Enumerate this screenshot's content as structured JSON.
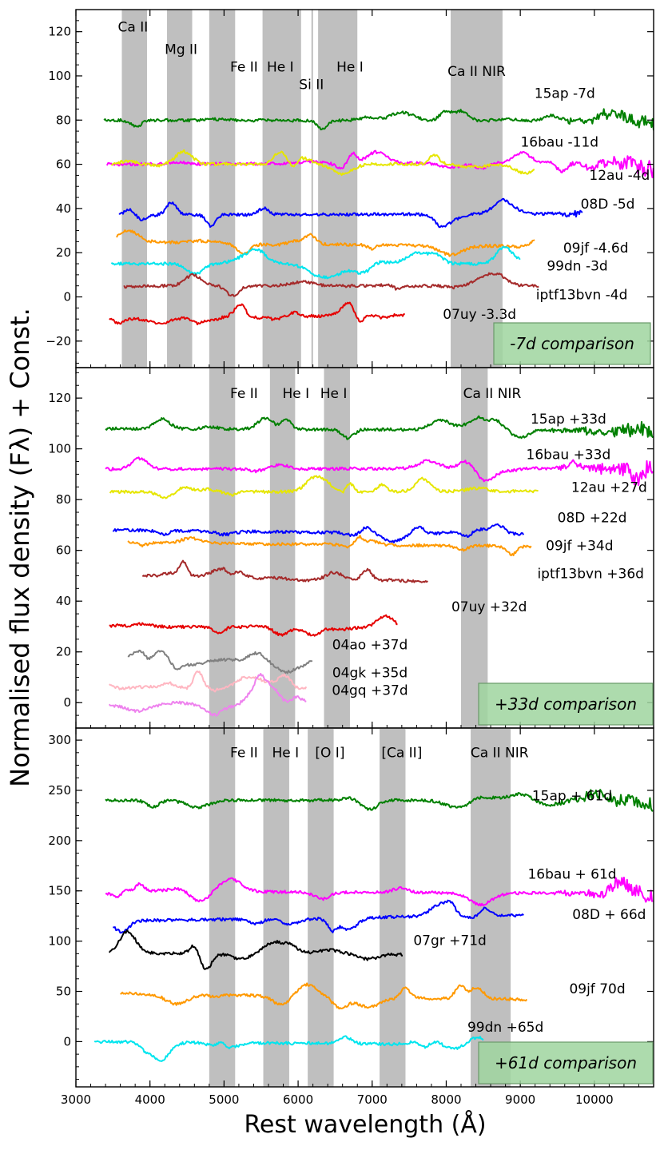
{
  "figure": {
    "ylabel": "Normalised flux density (Fλ) + Const.",
    "xlabel": "Rest wavelength (Å)"
  },
  "chart_data": [
    {
      "type": "line",
      "panel": "top",
      "xlim": [
        3000,
        10800
      ],
      "ylim": [
        -32,
        130
      ],
      "xticks": [
        3000,
        4000,
        5000,
        6000,
        7000,
        8000,
        9000,
        10000
      ],
      "yticks": [
        -20,
        0,
        20,
        40,
        60,
        80,
        100,
        120
      ],
      "comparison_label": "-7d comparison",
      "bands": [
        {
          "from": 3620,
          "to": 3960,
          "label": "Ca II",
          "label_x": 3770,
          "label_y": 120
        },
        {
          "from": 4230,
          "to": 4570,
          "label": "Mg II",
          "label_x": 4420,
          "label_y": 110
        },
        {
          "from": 4800,
          "to": 5150,
          "label": "Fe II",
          "label_x": 5270,
          "label_y": 102
        },
        {
          "from": 5520,
          "to": 6040,
          "label": "He I",
          "label_x": 5760,
          "label_y": 102
        },
        {
          "from": 6270,
          "to": 6800,
          "label": "He I",
          "label_x": 6700,
          "label_y": 102
        },
        {
          "from": 8060,
          "to": 8760,
          "label": "Ca II NIR",
          "label_x": 8410,
          "label_y": 100
        }
      ],
      "lines": [
        {
          "x": 6190,
          "label": "Si II",
          "label_x": 6180,
          "label_y": 94
        }
      ],
      "series": [
        {
          "name": "15ap -7d",
          "color": "#008000",
          "base": 80,
          "x_start": 3380,
          "x_end": 10800,
          "label_x": 9600,
          "label_y": 90
        },
        {
          "name": "16bau -11d",
          "color": "#ff00ff",
          "base": 60,
          "x_start": 3420,
          "x_end": 10800,
          "label_x": 9530,
          "label_y": 68
        },
        {
          "name": "12au -4d",
          "color": "#e6e600",
          "base": 60,
          "x_start": 3480,
          "x_end": 9200,
          "label_x": 10340,
          "label_y": 53
        },
        {
          "name": "08D -5d",
          "color": "#0000ff",
          "base": 37,
          "x_start": 3580,
          "x_end": 9850,
          "label_x": 10180,
          "label_y": 40
        },
        {
          "name": "09jf -4.6d",
          "color": "#ff9900",
          "base": 25,
          "x_start": 3550,
          "x_end": 9200,
          "label_x": 10020,
          "label_y": 20
        },
        {
          "name": "99dn -3d",
          "color": "#00e5ee",
          "base": 15,
          "x_start": 3480,
          "x_end": 9000,
          "label_x": 9770,
          "label_y": 12
        },
        {
          "name": "iptf13bvn -4d",
          "color": "#a52a2a",
          "base": 5,
          "x_start": 3650,
          "x_end": 9250,
          "label_x": 9830,
          "label_y": -1
        },
        {
          "name": "07uy -3.3d",
          "color": "#e60000",
          "base": -10,
          "x_start": 3450,
          "x_end": 7450,
          "label_x": 8450,
          "label_y": -10
        }
      ]
    },
    {
      "type": "line",
      "panel": "middle",
      "xlim": [
        3000,
        10800
      ],
      "ylim": [
        -10,
        132
      ],
      "xticks": [
        3000,
        4000,
        5000,
        6000,
        7000,
        8000,
        9000,
        10000
      ],
      "yticks": [
        0,
        20,
        40,
        60,
        80,
        100,
        120
      ],
      "comparison_label": "+33d comparison",
      "bands": [
        {
          "from": 4800,
          "to": 5150,
          "label": "Fe II",
          "label_x": 5270,
          "label_y": 120
        },
        {
          "from": 5620,
          "to": 5960,
          "label": "He I",
          "label_x": 5970,
          "label_y": 120
        },
        {
          "from": 6350,
          "to": 6700,
          "label": "He I",
          "label_x": 6480,
          "label_y": 120
        },
        {
          "from": 8200,
          "to": 8560,
          "label": "Ca II NIR",
          "label_x": 8620,
          "label_y": 120
        }
      ],
      "lines": [],
      "series": [
        {
          "name": "15ap +33d",
          "color": "#008000",
          "base": 108,
          "x_start": 3400,
          "x_end": 10800,
          "label_x": 9650,
          "label_y": 110
        },
        {
          "name": "16bau +33d",
          "color": "#ff00ff",
          "base": 92,
          "x_start": 3400,
          "x_end": 10800,
          "label_x": 9650,
          "label_y": 96
        },
        {
          "name": "12au +27d",
          "color": "#e6e600",
          "base": 83,
          "x_start": 3460,
          "x_end": 9250,
          "label_x": 10200,
          "label_y": 83
        },
        {
          "name": "08D +22d",
          "color": "#0000ff",
          "base": 68,
          "x_start": 3500,
          "x_end": 9050,
          "label_x": 9970,
          "label_y": 71
        },
        {
          "name": "09jf +34d",
          "color": "#ff9900",
          "base": 63,
          "x_start": 3700,
          "x_end": 9150,
          "label_x": 9800,
          "label_y": 60
        },
        {
          "name": "iptf13bvn +36d",
          "color": "#a52a2a",
          "base": 50,
          "x_start": 3900,
          "x_end": 7750,
          "label_x": 9950,
          "label_y": 49
        },
        {
          "name": "07uy +32d",
          "color": "#e60000",
          "base": 30,
          "x_start": 3450,
          "x_end": 7350,
          "label_x": 8580,
          "label_y": 36
        },
        {
          "name": "04ao +37d",
          "color": "#808080",
          "base": 18,
          "x_start": 3700,
          "x_end": 6200,
          "label_x": 6970,
          "label_y": 21
        },
        {
          "name": "04gk +35d",
          "color": "#ffb6c1",
          "base": 6,
          "x_start": 3450,
          "x_end": 6120,
          "label_x": 6970,
          "label_y": 10
        },
        {
          "name": "04gq +37d",
          "color": "#ee82ee",
          "base": -1,
          "x_start": 3450,
          "x_end": 6120,
          "label_x": 6970,
          "label_y": 3
        }
      ]
    },
    {
      "type": "line",
      "panel": "bottom",
      "xlim": [
        3000,
        10800
      ],
      "ylim": [
        -45,
        312
      ],
      "xticks": [
        3000,
        4000,
        5000,
        6000,
        7000,
        8000,
        9000,
        10000
      ],
      "yticks": [
        0,
        50,
        100,
        150,
        200,
        250,
        300
      ],
      "comparison_label": "+61d comparison",
      "bands": [
        {
          "from": 4800,
          "to": 5150,
          "label": "Fe II",
          "label_x": 5270,
          "label_y": 283
        },
        {
          "from": 5530,
          "to": 5880,
          "label": "He I",
          "label_x": 5830,
          "label_y": 283
        },
        {
          "from": 6130,
          "to": 6480,
          "label": "[O I]",
          "label_x": 6430,
          "label_y": 283
        },
        {
          "from": 7100,
          "to": 7450,
          "label": "[Ca II]",
          "label_x": 7400,
          "label_y": 283
        },
        {
          "from": 8330,
          "to": 8870,
          "label": "Ca II NIR",
          "label_x": 8720,
          "label_y": 283
        }
      ],
      "lines": [],
      "series": [
        {
          "name": "15ap + 61d",
          "color": "#008000",
          "base": 240,
          "x_start": 3400,
          "x_end": 10800,
          "label_x": 9700,
          "label_y": 240
        },
        {
          "name": "16bau + 61d",
          "color": "#ff00ff",
          "base": 150,
          "x_start": 3400,
          "x_end": 10800,
          "label_x": 9700,
          "label_y": 162
        },
        {
          "name": "08D + 66d",
          "color": "#0000ff",
          "base": 120,
          "x_start": 3500,
          "x_end": 9050,
          "label_x": 10200,
          "label_y": 122
        },
        {
          "name": "07gr +71d",
          "color": "#000000",
          "base": 88,
          "x_start": 3450,
          "x_end": 7420,
          "label_x": 8050,
          "label_y": 96
        },
        {
          "name": "09jf 70d",
          "color": "#ff9900",
          "base": 48,
          "x_start": 3600,
          "x_end": 9100,
          "label_x": 10040,
          "label_y": 48
        },
        {
          "name": "99dn +65d",
          "color": "#00e5ee",
          "base": 0,
          "x_start": 3250,
          "x_end": 8500,
          "label_x": 8800,
          "label_y": 10
        }
      ]
    }
  ]
}
